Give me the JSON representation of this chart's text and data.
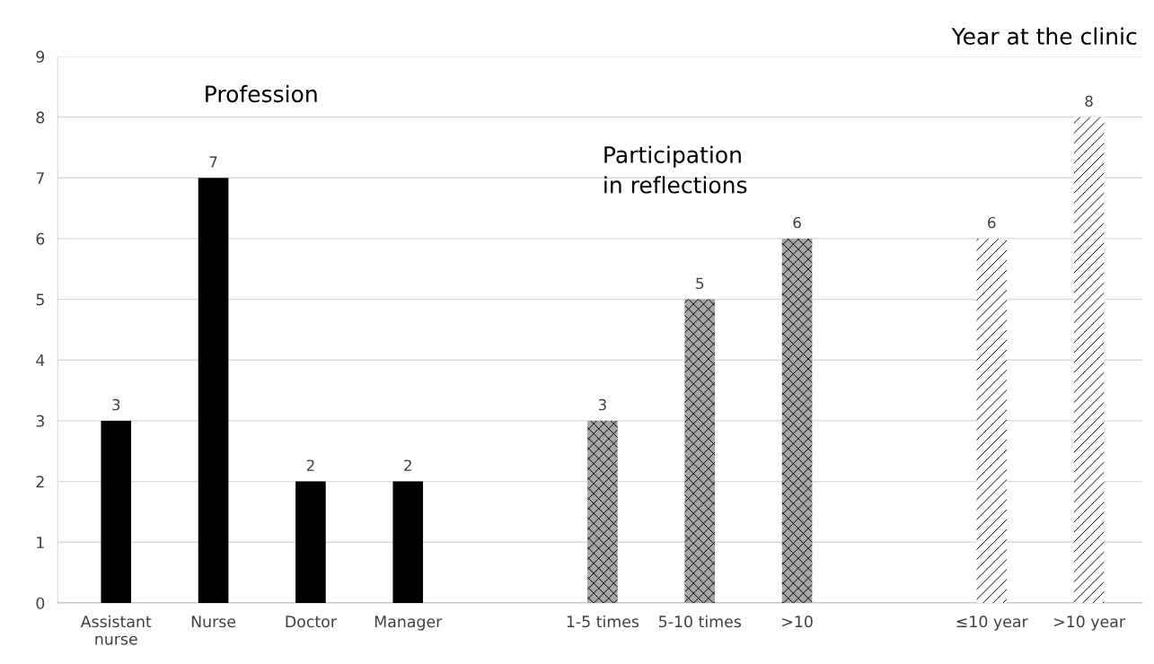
{
  "chart_data": {
    "type": "bar",
    "categories": [
      "Assistant\nnurse",
      "Nurse",
      "Doctor",
      "Manager",
      null,
      "1-5 times",
      "5-10 times",
      ">10",
      null,
      "≤10 year",
      ">10 year"
    ],
    "series": [
      {
        "color": "#000000",
        "values": [
          3,
          7,
          2,
          2,
          null,
          null,
          null,
          null,
          null,
          null,
          null
        ]
      },
      {
        "color": "#a6a6a6",
        "values": [
          null,
          null,
          null,
          null,
          null,
          3,
          5,
          6,
          null,
          null,
          null
        ]
      },
      {
        "color": "#ffffff",
        "values": [
          null,
          null,
          null,
          null,
          null,
          null,
          null,
          null,
          null,
          6,
          8
        ]
      }
    ],
    "annotations": [
      "Profession",
      "Participation\nin reflections",
      "Year at the clinic"
    ],
    "ylim": [
      0,
      9
    ],
    "yticks": [
      0,
      1,
      2,
      3,
      4,
      5,
      6,
      7,
      8,
      9
    ],
    "grid": "y",
    "data_labels": true,
    "legend": false
  }
}
